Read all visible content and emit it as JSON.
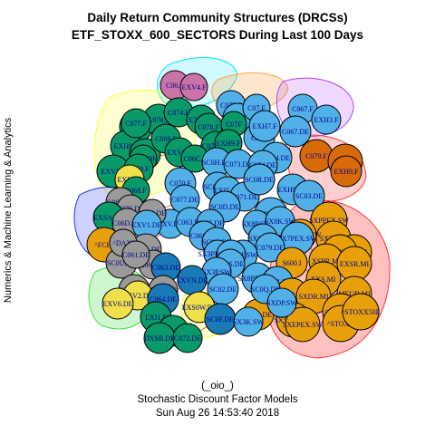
{
  "title_line1": "Daily Return Community Structures (DRCSs)",
  "title_line2": "ETF_STOXX_600_SECTORS During Last 100 Days",
  "side_label": "Numerics & Machine Learning & Analytics",
  "footer": {
    "line1": "(_oio_)",
    "line2": "Stochastic Discount Factor Models",
    "line3": "Sun Aug 26 14:53:40 2018"
  },
  "colors": {
    "green": "#0a9a6a",
    "blue": "#52b0e8",
    "orange": "#e8a00a",
    "gray": "#9a9a9a",
    "yellow": "#f0e04a",
    "pink": "#c874a8",
    "darkorange": "#d86a0a",
    "navy": "#1a7ab8",
    "edge": "#ee2020",
    "label": "#00008b"
  },
  "nodes": [
    {
      "label": "C06.F",
      "c": "pink"
    },
    {
      "label": "EXV4.F",
      "c": "pink"
    },
    {
      "label": "C073.F",
      "c": "blue"
    },
    {
      "label": "C07.F",
      "c": "blue"
    },
    {
      "label": "C07.F",
      "c": "blue"
    },
    {
      "label": "C07F",
      "c": "blue"
    },
    {
      "label": "C067.F",
      "c": "blue"
    },
    {
      "label": "EXH3.F",
      "c": "blue"
    },
    {
      "label": "EXH3.F",
      "c": "green"
    },
    {
      "label": "C076.F",
      "c": "green"
    },
    {
      "label": "C074.F",
      "c": "green"
    },
    {
      "label": "EXV9.F",
      "c": "green"
    },
    {
      "label": "C078.F",
      "c": "green"
    },
    {
      "label": "C07F",
      "c": "green"
    },
    {
      "label": "EXH7.F",
      "c": "blue"
    },
    {
      "label": "C067.DE",
      "c": "blue"
    },
    {
      "label": "EXH8.F",
      "c": "green"
    },
    {
      "label": "C066.F",
      "c": "green"
    },
    {
      "label": "C069.F",
      "c": "green"
    },
    {
      "label": "C078.DE",
      "c": "green"
    },
    {
      "label": "EXH9.F",
      "c": "green"
    },
    {
      "label": "C079.F",
      "c": "darkorange"
    },
    {
      "label": "SC0Z.F",
      "c": "darkorange"
    },
    {
      "label": "EXH9.F",
      "c": "darkorange"
    },
    {
      "label": "EXV8.F",
      "c": "green"
    },
    {
      "label": "C066.DE",
      "c": "green"
    },
    {
      "label": "C06C.F",
      "c": "green"
    },
    {
      "label": "SC0H.DE",
      "c": "blue"
    },
    {
      "label": "C073.DE",
      "c": "blue"
    },
    {
      "label": "SC04.DE",
      "c": "blue"
    },
    {
      "label": "C074.DE",
      "c": "blue"
    },
    {
      "label": "EXV7.F",
      "c": "green"
    },
    {
      "label": "C060.F",
      "c": "green"
    },
    {
      "label": "EXV3.F",
      "c": "yellow"
    },
    {
      "label": "C070.F",
      "c": "blue"
    },
    {
      "label": "SC06.DE",
      "c": "blue"
    },
    {
      "label": "EXI5.DE",
      "c": "blue"
    },
    {
      "label": "C071.DE",
      "c": "blue"
    },
    {
      "label": "SC0R.DE",
      "c": "blue"
    },
    {
      "label": "EXH9.DE",
      "c": "blue"
    },
    {
      "label": "SC03.DE",
      "c": "blue"
    },
    {
      "label": "C068.F",
      "c": "green"
    },
    {
      "label": "C077.DE",
      "c": "blue"
    },
    {
      "label": "C062.DE",
      "c": "gray"
    },
    {
      "label": "SC0D.DE",
      "c": "blue"
    },
    {
      "label": "EXV.DE",
      "c": "blue"
    },
    {
      "label": "SX6PEX.SW",
      "c": "blue"
    },
    {
      "label": "C076.DE",
      "c": "gray"
    },
    {
      "label": "C060.DE",
      "c": "gray"
    },
    {
      "label": "EXSA.DE",
      "c": "green"
    },
    {
      "label": "C06D.DE",
      "c": "gray"
    },
    {
      "label": "EXV1.DE",
      "c": "blue"
    },
    {
      "label": "C063.DE",
      "c": "blue"
    },
    {
      "label": "C065.DE",
      "c": "blue"
    },
    {
      "label": "SX8P.SW",
      "c": "blue"
    },
    {
      "label": "SXPPEX.SW",
      "c": "orange"
    },
    {
      "label": "SX8K.SW",
      "c": "blue"
    },
    {
      "label": "SXTP.MI",
      "c": "orange"
    },
    {
      "label": "SXKPEX.SW",
      "c": "orange"
    },
    {
      "label": "SX6P.SW",
      "c": "blue"
    },
    {
      "label": "S600.MI",
      "c": "orange"
    },
    {
      "label": "C069.DE",
      "c": "blue"
    },
    {
      "label": "SC0X.DE",
      "c": "blue"
    },
    {
      "label": "SX7PEX.SW",
      "c": "blue"
    },
    {
      "label": "C079.DE",
      "c": "blue"
    },
    {
      "label": "SX8P.MI",
      "c": "orange"
    },
    {
      "label": "XSPR.MI",
      "c": "orange"
    },
    {
      "label": "EXSR.MI",
      "c": "orange"
    },
    {
      "label": "^FCHI",
      "c": "orange"
    },
    {
      "label": "EXV1.DE",
      "c": "gray"
    },
    {
      "label": "SC0U.DE",
      "c": "gray"
    },
    {
      "label": "C062.DE",
      "c": "gray"
    },
    {
      "label": "SC0P.SW",
      "c": "blue"
    },
    {
      "label": "SX3PEX.SW",
      "c": "blue"
    },
    {
      "label": "SX8R.DE",
      "c": "blue"
    },
    {
      "label": "S600.I",
      "c": "orange"
    },
    {
      "label": "^DAXI",
      "c": "gray"
    },
    {
      "label": "C061.DE",
      "c": "gray"
    },
    {
      "label": "C063.DE",
      "c": "navy"
    },
    {
      "label": "SC0S.DE",
      "c": "blue"
    },
    {
      "label": "SX3P.SW",
      "c": "blue"
    },
    {
      "label": "EXS.MI",
      "c": "orange"
    },
    {
      "label": "EXV5.DE",
      "c": "gray"
    },
    {
      "label": "C068.DE",
      "c": "gray"
    },
    {
      "label": "EXVN.DE",
      "c": "navy"
    },
    {
      "label": "SX8PEX.SW",
      "c": "blue"
    },
    {
      "label": "SC0Z.DE",
      "c": "blue"
    },
    {
      "label": "SX8P.SW",
      "c": "orange"
    },
    {
      "label": "EXV2.DE",
      "c": "yellow"
    },
    {
      "label": "C064.DE",
      "c": "navy"
    },
    {
      "label": "SC02.DE",
      "c": "blue"
    },
    {
      "label": "SXDR.MI",
      "c": "orange"
    },
    {
      "label": "MEUD.MI",
      "c": "orange"
    },
    {
      "label": "EXV6.DE",
      "c": "yellow"
    },
    {
      "label": "EXI1.F",
      "c": "green"
    },
    {
      "label": "EXS0W.DE",
      "c": "yellow"
    },
    {
      "label": "SC01.DE",
      "c": "orange"
    },
    {
      "label": "SC0Q.DE",
      "c": "blue"
    },
    {
      "label": "SX5PEX.SW",
      "c": "orange"
    },
    {
      "label": "^STOXXE",
      "c": "orange"
    },
    {
      "label": "SC0V.DE",
      "c": "green"
    },
    {
      "label": "DXSB.DE",
      "c": "green"
    },
    {
      "label": "C072.DE",
      "c": "green"
    },
    {
      "label": "SC0F.DE",
      "c": "navy"
    },
    {
      "label": "SX3K.SW",
      "c": "blue"
    },
    {
      "label": "SXEPEX.SW",
      "c": "orange"
    },
    {
      "label": "^STOXX",
      "c": "orange"
    },
    {
      "label": "SXDP.SW",
      "c": "blue"
    },
    {
      "label": "^STOXX50E",
      "c": "orange"
    },
    {
      "label": "C077.F",
      "c": "green"
    }
  ]
}
